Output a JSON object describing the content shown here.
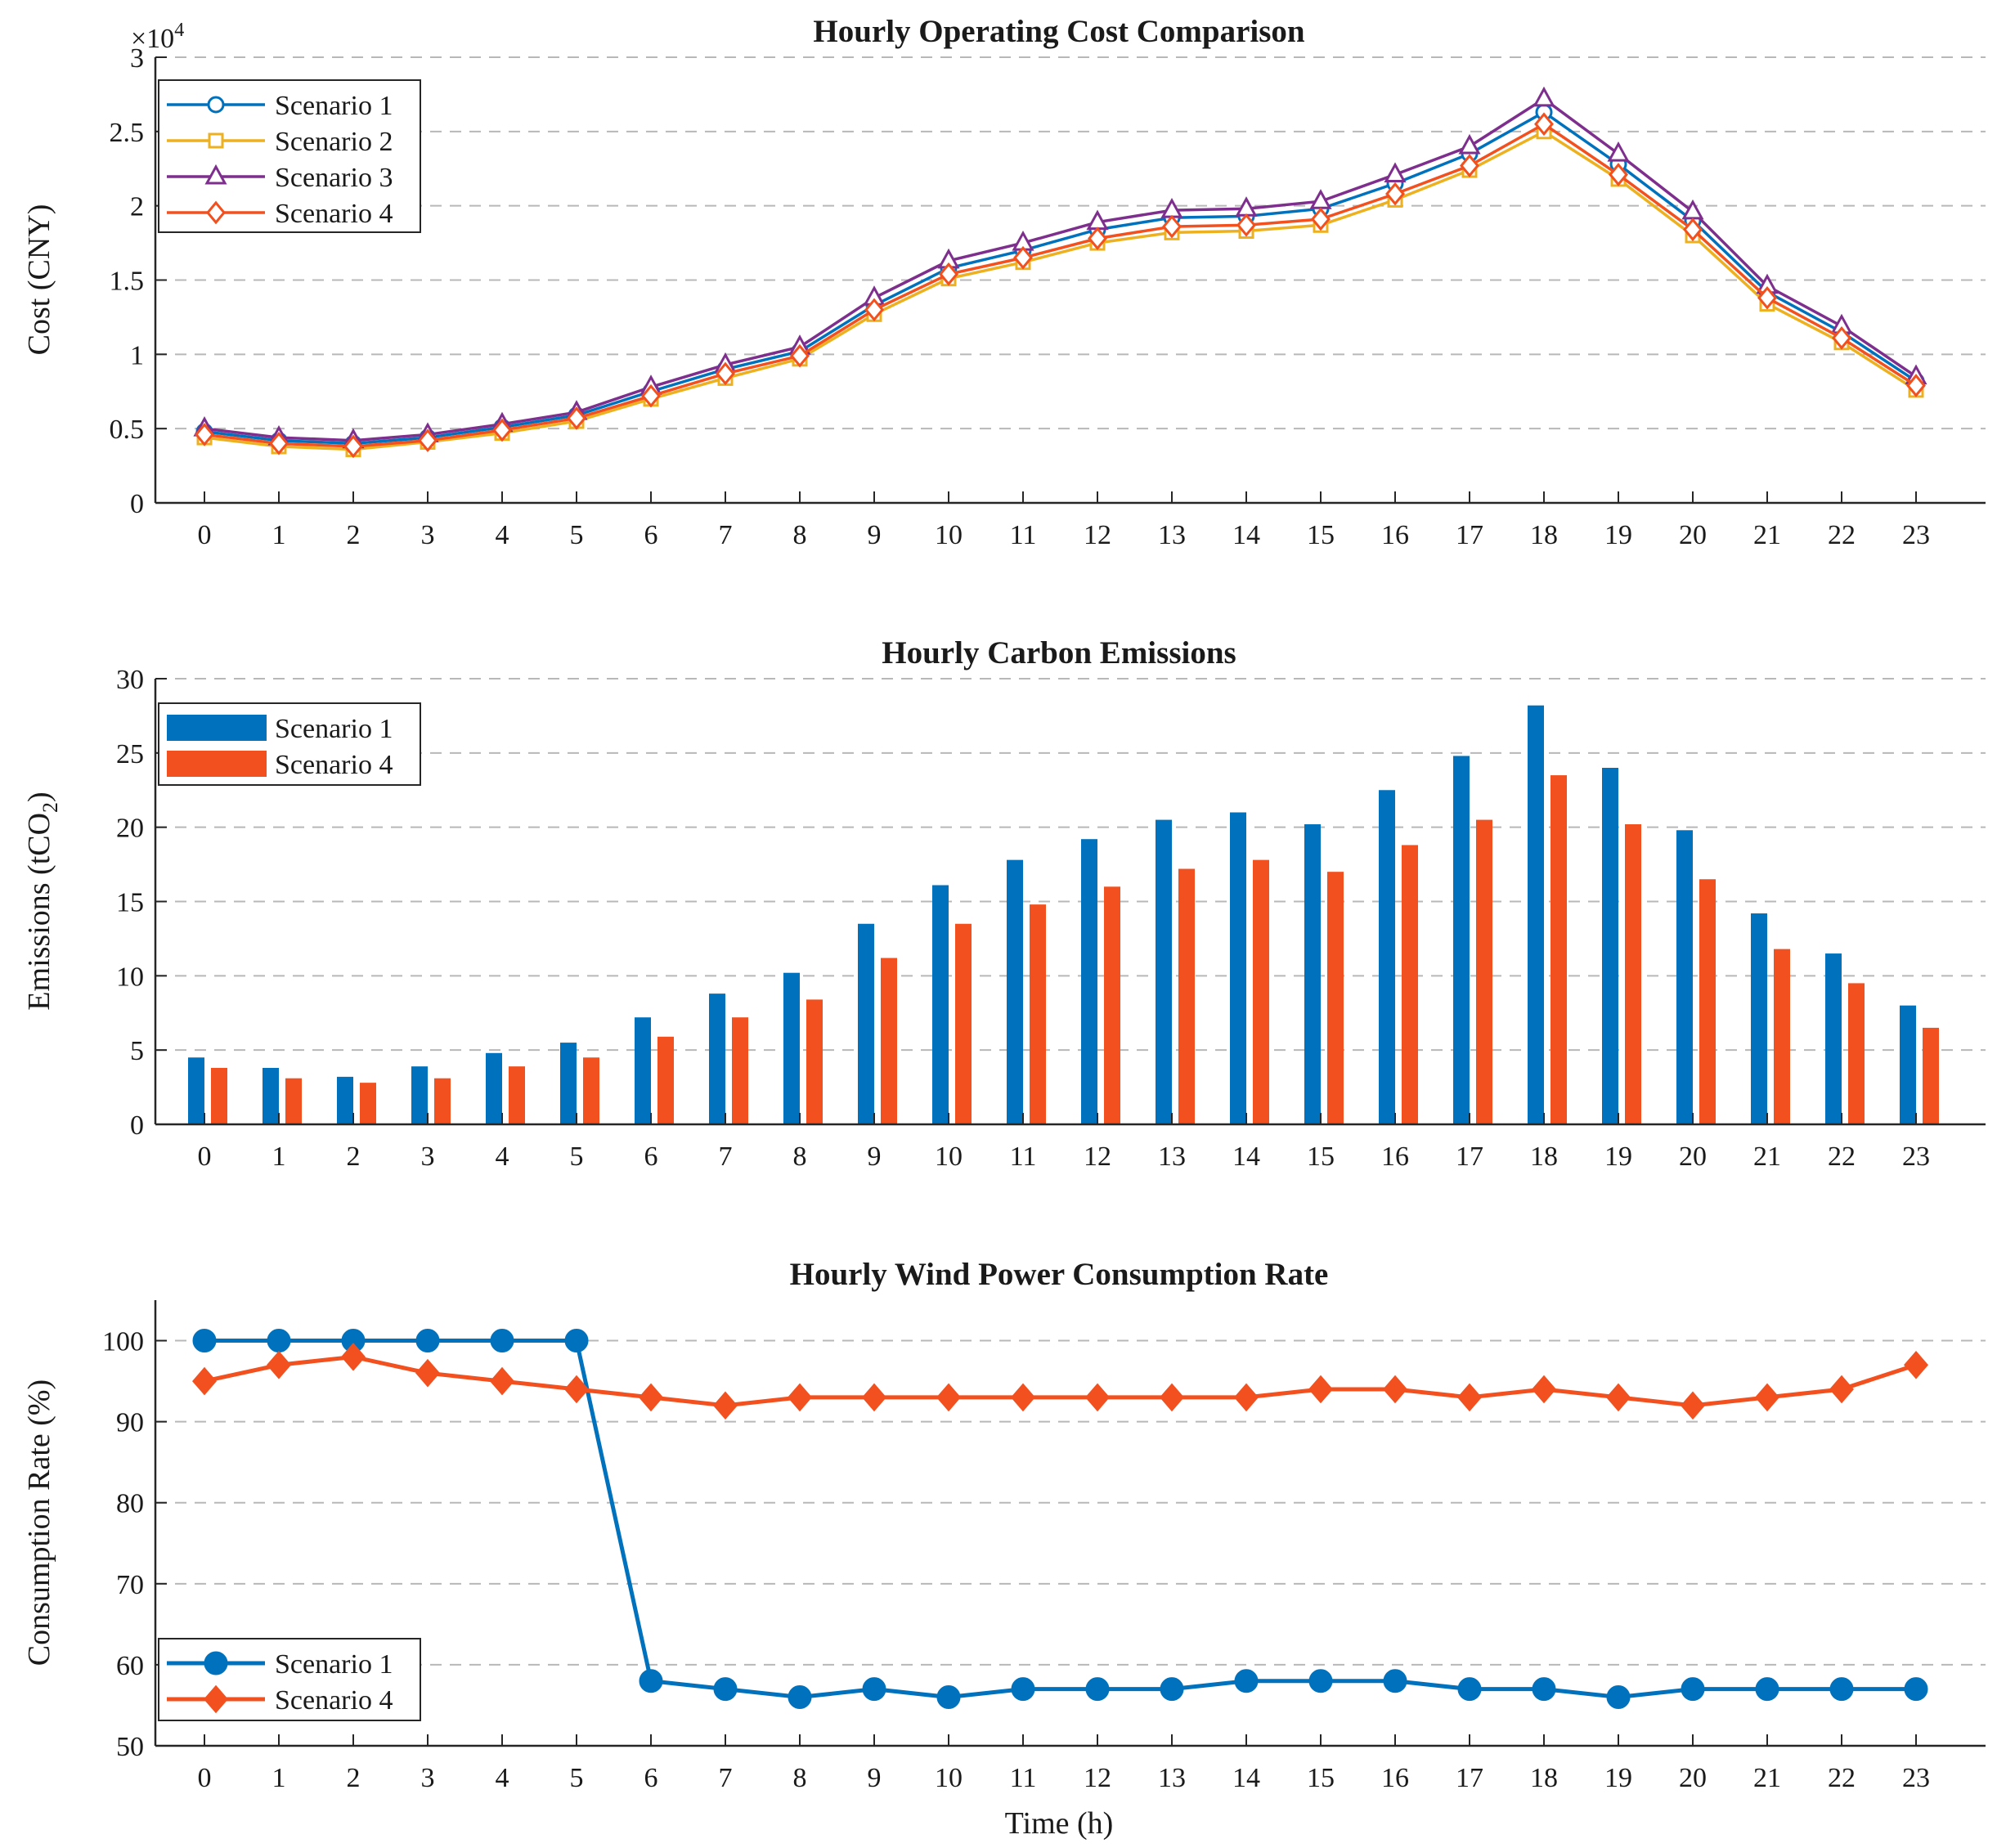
{
  "colors": {
    "scenario1": "#0072BD",
    "scenario2": "#EDB120",
    "scenario3": "#7E2F8E",
    "scenario4": "#F2501E",
    "grid": "#b8b8b8",
    "axis": "#262626"
  },
  "chart_data": [
    {
      "type": "line",
      "title": "Hourly Operating Cost Comparison",
      "xlabel": "",
      "ylabel": "Cost (CNY)",
      "y_exponent_label": "×10",
      "y_exponent_power": "4",
      "x": [
        0,
        1,
        2,
        3,
        4,
        5,
        6,
        7,
        8,
        9,
        10,
        11,
        12,
        13,
        14,
        15,
        16,
        17,
        18,
        19,
        20,
        21,
        22,
        23
      ],
      "ylim": [
        0,
        3
      ],
      "yticks": [
        0,
        0.5,
        1,
        1.5,
        2,
        2.5,
        3
      ],
      "ytick_labels": [
        "0",
        "0.5",
        "1",
        "1.5",
        "2",
        "2.5",
        "3"
      ],
      "grid": "horizontal dashed",
      "legend_position": "top-left",
      "series": [
        {
          "name": "Scenario 1",
          "color_key": "scenario1",
          "marker": "circle",
          "values": [
            0.48,
            0.42,
            0.4,
            0.44,
            0.51,
            0.59,
            0.75,
            0.9,
            1.02,
            1.33,
            1.58,
            1.7,
            1.84,
            1.92,
            1.93,
            1.98,
            2.15,
            2.35,
            2.63,
            2.28,
            1.9,
            1.42,
            1.15,
            0.82
          ]
        },
        {
          "name": "Scenario 2",
          "color_key": "scenario2",
          "marker": "square",
          "values": [
            0.44,
            0.38,
            0.36,
            0.41,
            0.47,
            0.55,
            0.7,
            0.84,
            0.97,
            1.27,
            1.51,
            1.62,
            1.75,
            1.82,
            1.83,
            1.87,
            2.04,
            2.24,
            2.5,
            2.18,
            1.8,
            1.34,
            1.08,
            0.76
          ]
        },
        {
          "name": "Scenario 3",
          "color_key": "scenario3",
          "marker": "triangle",
          "values": [
            0.5,
            0.44,
            0.42,
            0.46,
            0.53,
            0.61,
            0.78,
            0.93,
            1.05,
            1.38,
            1.63,
            1.75,
            1.89,
            1.97,
            1.98,
            2.03,
            2.21,
            2.4,
            2.72,
            2.35,
            1.96,
            1.46,
            1.19,
            0.85
          ]
        },
        {
          "name": "Scenario 4",
          "color_key": "scenario4",
          "marker": "diamond",
          "values": [
            0.46,
            0.4,
            0.38,
            0.42,
            0.49,
            0.57,
            0.72,
            0.87,
            0.99,
            1.3,
            1.54,
            1.65,
            1.78,
            1.86,
            1.87,
            1.91,
            2.08,
            2.27,
            2.55,
            2.21,
            1.84,
            1.38,
            1.11,
            0.79
          ]
        }
      ]
    },
    {
      "type": "bar",
      "title": "Hourly Carbon Emissions",
      "xlabel": "",
      "ylabel": "Emissions (tCO",
      "ylabel_subscript": "2",
      "ylabel_suffix": ")",
      "x": [
        0,
        1,
        2,
        3,
        4,
        5,
        6,
        7,
        8,
        9,
        10,
        11,
        12,
        13,
        14,
        15,
        16,
        17,
        18,
        19,
        20,
        21,
        22,
        23
      ],
      "ylim": [
        0,
        30
      ],
      "yticks": [
        0,
        5,
        10,
        15,
        20,
        25,
        30
      ],
      "ytick_labels": [
        "0",
        "5",
        "10",
        "15",
        "20",
        "25",
        "30"
      ],
      "grid": "horizontal dashed",
      "legend_position": "top-left",
      "series": [
        {
          "name": "Scenario 1",
          "color_key": "scenario1",
          "values": [
            4.5,
            3.8,
            3.2,
            3.9,
            4.8,
            5.5,
            7.2,
            8.8,
            10.2,
            13.5,
            16.1,
            17.8,
            19.2,
            20.5,
            21.0,
            20.2,
            22.5,
            24.8,
            28.2,
            24.0,
            19.8,
            14.2,
            11.5,
            8.0
          ]
        },
        {
          "name": "Scenario 4",
          "color_key": "scenario4",
          "values": [
            3.8,
            3.1,
            2.8,
            3.1,
            3.9,
            4.5,
            5.9,
            7.2,
            8.4,
            11.2,
            13.5,
            14.8,
            16.0,
            17.2,
            17.8,
            17.0,
            18.8,
            20.5,
            23.5,
            20.2,
            16.5,
            11.8,
            9.5,
            6.5
          ]
        }
      ]
    },
    {
      "type": "line",
      "title": "Hourly Wind Power Consumption Rate",
      "xlabel": "Time (h)",
      "ylabel": "Consumption Rate (%)",
      "x": [
        0,
        1,
        2,
        3,
        4,
        5,
        6,
        7,
        8,
        9,
        10,
        11,
        12,
        13,
        14,
        15,
        16,
        17,
        18,
        19,
        20,
        21,
        22,
        23
      ],
      "ylim": [
        50,
        105
      ],
      "yticks": [
        50,
        60,
        70,
        80,
        90,
        100
      ],
      "ytick_labels": [
        "50",
        "60",
        "70",
        "80",
        "90",
        "100"
      ],
      "grid": "horizontal dashed",
      "legend_position": "bottom-left",
      "series": [
        {
          "name": "Scenario 1",
          "color_key": "scenario1",
          "marker": "filled-circle",
          "values": [
            100,
            100,
            100,
            100,
            100,
            100,
            58,
            57,
            56,
            57,
            56,
            57,
            57,
            57,
            58,
            58,
            58,
            57,
            57,
            56,
            57,
            57,
            57,
            57
          ]
        },
        {
          "name": "Scenario 4",
          "color_key": "scenario4",
          "marker": "filled-diamond",
          "values": [
            95,
            97,
            98,
            96,
            95,
            94,
            93,
            92,
            93,
            93,
            93,
            93,
            93,
            93,
            93,
            94,
            94,
            93,
            94,
            93,
            92,
            93,
            94,
            97
          ]
        }
      ]
    }
  ]
}
